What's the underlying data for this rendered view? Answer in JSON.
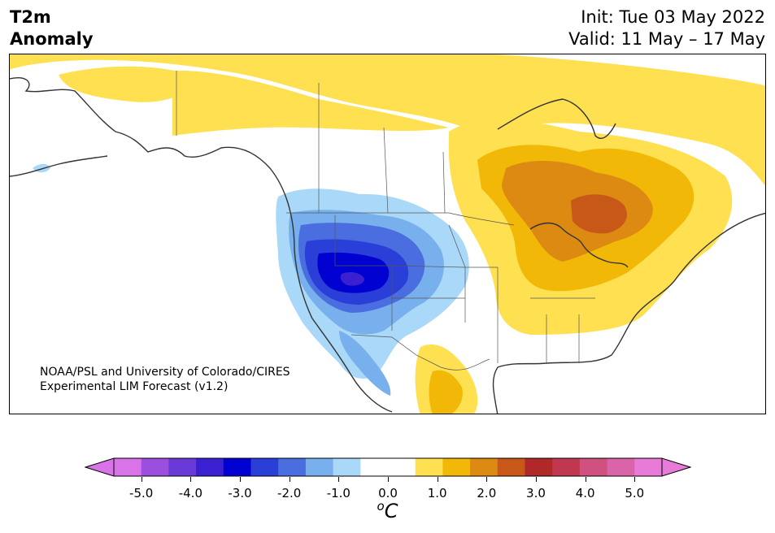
{
  "header": {
    "title_line1": "T2m",
    "title_line2": "Anomaly",
    "init": "Init: Tue 03 May 2022",
    "valid": "Valid: 11 May – 17 May"
  },
  "credit": {
    "line1": "NOAA/PSL and University of Colorado/CIRES",
    "line2": "Experimental LIM Forecast (v1.2)"
  },
  "colorbar": {
    "units_base": "C",
    "units_sup": "o",
    "tick_labels": [
      "-5.0",
      "-4.0",
      "-3.0",
      "-2.0",
      "-1.0",
      "0.0",
      "1.0",
      "2.0",
      "3.0",
      "4.0",
      "5.0"
    ],
    "under_color": "#d873e8",
    "over_color": "#e87ad8",
    "bins": [
      "#d873e8",
      "#9c4fdf",
      "#6a3ad8",
      "#3a20d0",
      "#0000d0",
      "#2a3ed8",
      "#4a6ee0",
      "#78b0ee",
      "#aad8f8",
      "#ffffff",
      "#ffffff",
      "#ffe050",
      "#f2b808",
      "#dc8a12",
      "#c85818",
      "#b02828",
      "#c03850",
      "#d05080",
      "#da64a8",
      "#e87ad8"
    ]
  }
}
